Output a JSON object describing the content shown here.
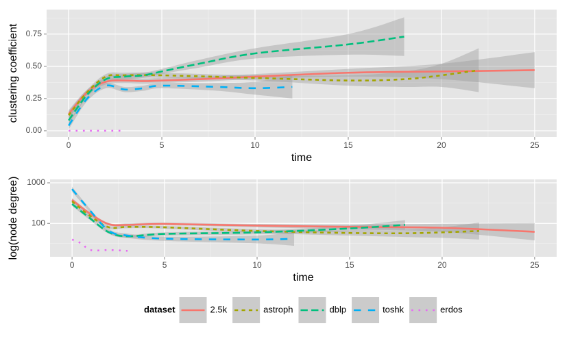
{
  "chart_data": [
    {
      "type": "line",
      "x_label": "time",
      "y_label": "clustering coefficient",
      "xlim": [
        -1.18,
        26.18
      ],
      "ylim": [
        -0.048,
        0.94
      ],
      "xticks": [
        0,
        5,
        10,
        15,
        20,
        25
      ],
      "yticks": [
        {
          "value": 0,
          "label": "0.00"
        },
        {
          "value": 0.25,
          "label": "0.25"
        },
        {
          "value": 0.5,
          "label": "0.50"
        },
        {
          "value": 0.75,
          "label": "0.75"
        }
      ],
      "grid": true,
      "legend": "bottom",
      "legend_title": "dataset",
      "series": [
        {
          "name": "2.5k",
          "color": "#F8766D",
          "linetype": "solid",
          "x": [
            0,
            1,
            2,
            3,
            4,
            5,
            7,
            10,
            15,
            20,
            25
          ],
          "values": [
            0.13,
            0.3,
            0.38,
            0.39,
            0.385,
            0.39,
            0.4,
            0.42,
            0.45,
            0.46,
            0.47
          ],
          "lower": [
            0.1,
            0.28,
            0.36,
            0.37,
            0.365,
            0.37,
            0.38,
            0.4,
            0.42,
            0.4,
            0.33
          ],
          "upper": [
            0.16,
            0.32,
            0.4,
            0.41,
            0.405,
            0.41,
            0.42,
            0.44,
            0.48,
            0.52,
            0.61
          ]
        },
        {
          "name": "astroph",
          "color": "#A3A500",
          "linetype": "22",
          "x": [
            0,
            1,
            2,
            3,
            5,
            10,
            15,
            18,
            20,
            22
          ],
          "values": [
            0.12,
            0.3,
            0.42,
            0.43,
            0.43,
            0.41,
            0.39,
            0.4,
            0.43,
            0.47
          ],
          "lower": [
            0.09,
            0.28,
            0.4,
            0.41,
            0.41,
            0.39,
            0.35,
            0.34,
            0.34,
            0.3
          ],
          "upper": [
            0.15,
            0.32,
            0.44,
            0.45,
            0.45,
            0.43,
            0.43,
            0.46,
            0.52,
            0.64
          ]
        },
        {
          "name": "dblp",
          "color": "#00BF7D",
          "linetype": "42",
          "x": [
            0,
            1,
            2,
            3,
            4,
            5,
            7,
            10,
            15,
            18
          ],
          "values": [
            0.08,
            0.28,
            0.4,
            0.42,
            0.43,
            0.46,
            0.52,
            0.6,
            0.67,
            0.73
          ],
          "lower": [
            0.05,
            0.26,
            0.38,
            0.4,
            0.41,
            0.44,
            0.49,
            0.56,
            0.59,
            0.58
          ],
          "upper": [
            0.11,
            0.3,
            0.42,
            0.44,
            0.45,
            0.48,
            0.55,
            0.64,
            0.75,
            0.88
          ]
        },
        {
          "name": "toshk",
          "color": "#00B0F6",
          "linetype": "44",
          "x": [
            0,
            1,
            2,
            3,
            4,
            5,
            8,
            10,
            12
          ],
          "values": [
            0.04,
            0.25,
            0.35,
            0.32,
            0.33,
            0.35,
            0.34,
            0.33,
            0.34
          ],
          "lower": [
            0.01,
            0.23,
            0.33,
            0.3,
            0.31,
            0.33,
            0.31,
            0.28,
            0.25
          ],
          "upper": [
            0.07,
            0.27,
            0.37,
            0.34,
            0.35,
            0.37,
            0.37,
            0.38,
            0.43
          ]
        },
        {
          "name": "erdos",
          "color": "#E76BF3",
          "linetype": "13",
          "x": [
            0,
            1,
            2,
            3
          ],
          "values": [
            0,
            0,
            0,
            0
          ]
        }
      ]
    },
    {
      "type": "line",
      "x_label": "time",
      "y_label": "log(node degree)",
      "xlim": [
        -1.19,
        26.19
      ],
      "ylim": [
        15,
        1216
      ],
      "log_y": true,
      "xticks": [
        0,
        5,
        10,
        15,
        20,
        25
      ],
      "yticks": [
        100,
        1000
      ],
      "grid": true,
      "series": [
        {
          "color": "#F8766D",
          "linetype": "solid",
          "x": [
            0,
            1,
            2,
            3,
            5,
            10,
            15,
            20,
            25
          ],
          "values": [
            380,
            170,
            95,
            92,
            97,
            88,
            82,
            78,
            62
          ],
          "lower": [
            340,
            155,
            88,
            85,
            90,
            80,
            72,
            62,
            38
          ],
          "upper": [
            420,
            185,
            102,
            100,
            105,
            97,
            93,
            98,
            102
          ]
        },
        {
          "color": "#A3A500",
          "linetype": "22",
          "x": [
            0,
            1,
            2,
            3,
            5,
            10,
            15,
            18,
            20,
            22
          ],
          "values": [
            350,
            150,
            80,
            82,
            80,
            65,
            58,
            57,
            60,
            65
          ],
          "lower": [
            315,
            135,
            74,
            76,
            74,
            58,
            50,
            46,
            44,
            40
          ],
          "upper": [
            390,
            165,
            86,
            88,
            86,
            72,
            66,
            70,
            80,
            105
          ]
        },
        {
          "color": "#00BF7D",
          "linetype": "42",
          "x": [
            0,
            1,
            2,
            3,
            5,
            10,
            15,
            18
          ],
          "values": [
            300,
            130,
            60,
            48,
            55,
            60,
            75,
            92
          ],
          "lower": [
            270,
            118,
            55,
            44,
            50,
            54,
            64,
            70
          ],
          "upper": [
            330,
            142,
            65,
            52,
            60,
            66,
            88,
            120
          ]
        },
        {
          "color": "#00B0F6",
          "linetype": "44",
          "x": [
            0,
            1,
            2,
            3,
            5,
            10,
            12
          ],
          "values": [
            700,
            200,
            65,
            50,
            42,
            40,
            42
          ],
          "lower": [
            600,
            180,
            58,
            44,
            37,
            32,
            28
          ],
          "upper": [
            800,
            220,
            72,
            56,
            47,
            50,
            62
          ]
        },
        {
          "color": "#E76BF3",
          "linetype": "13",
          "x": [
            0,
            0.5,
            1,
            2,
            3
          ],
          "values": [
            40,
            32,
            22,
            22,
            21
          ]
        }
      ]
    }
  ]
}
